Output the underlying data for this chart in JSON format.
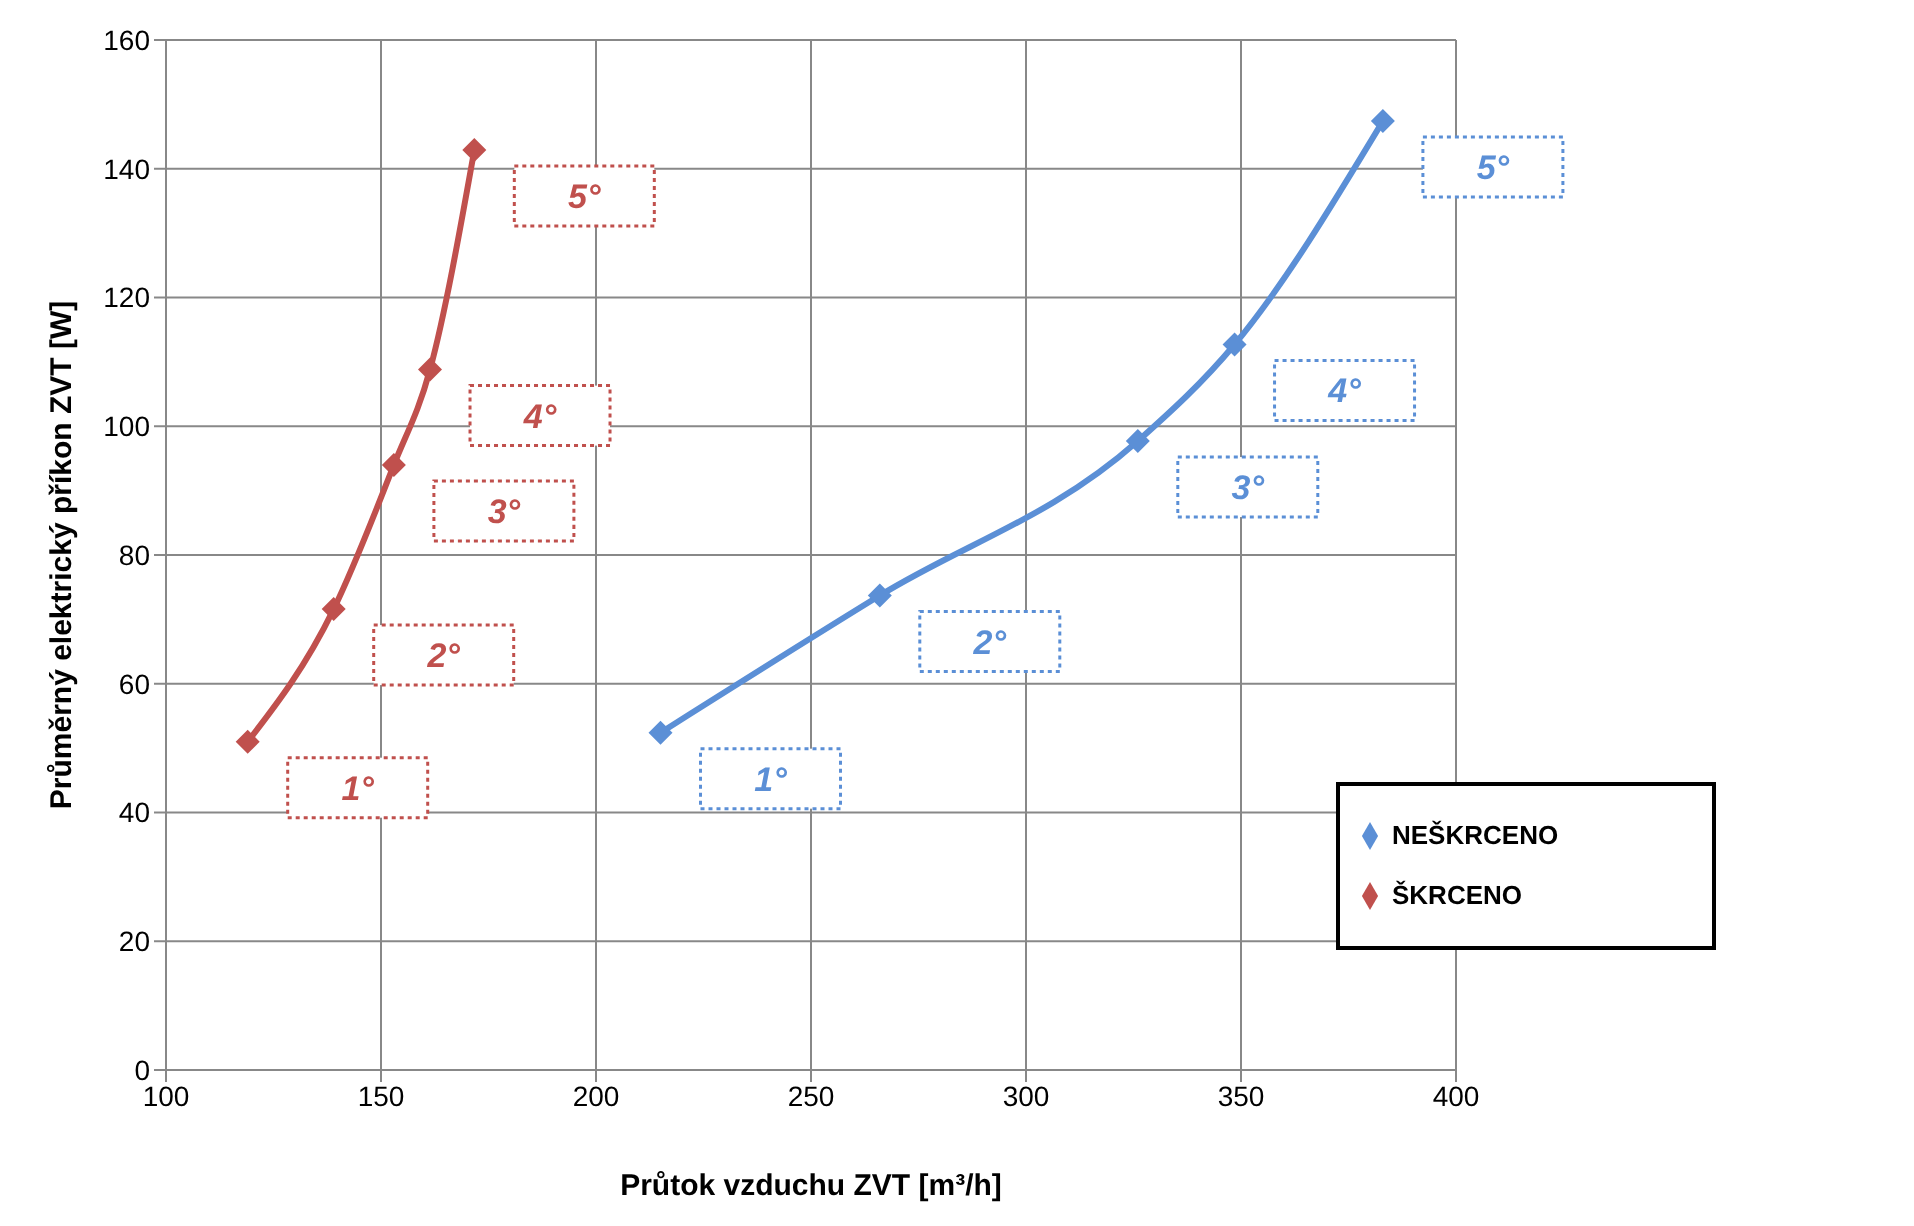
{
  "chart_data": {
    "type": "line",
    "xlabel": "Průtok vzduchu ZVT [m³/h]",
    "ylabel": "Průměrný elektrický příkon ZVT  [W]",
    "xlim": [
      100,
      400
    ],
    "xticks": [
      100,
      150,
      200,
      250,
      300,
      350,
      400
    ],
    "ylim": [
      0,
      160
    ],
    "yticks": [
      0,
      20,
      40,
      60,
      80,
      100,
      120,
      140,
      160
    ],
    "grid": true,
    "legend": "bottom right",
    "marker": "diamond",
    "line_style": "solid",
    "series": [
      {
        "name": "NEŠKRCENO",
        "color": "#5b8fd6",
        "x": [
          215,
          266,
          326,
          348.5,
          383
        ],
        "values": [
          52.4,
          73.7,
          97.7,
          112.7,
          147.4
        ]
      },
      {
        "name": "ŠKRCENO",
        "color": "#c0504d",
        "x": [
          119,
          139,
          153,
          161.4,
          171.7
        ],
        "values": [
          51,
          71.6,
          94,
          108.8,
          142.9
        ]
      }
    ],
    "annotations": [
      {
        "text": "1°",
        "x": 215,
        "y": 52.4
      },
      {
        "text": "2°",
        "x": 266,
        "y": 73.7
      },
      {
        "text": "3°",
        "x": 326,
        "y": 97.7
      },
      {
        "text": "4°",
        "x": 348.5,
        "y": 112.7
      },
      {
        "text": "5°",
        "x": 383,
        "y": 147.4
      },
      {
        "text": "1°",
        "x": 119,
        "y": 51
      },
      {
        "text": "2°",
        "x": 139,
        "y": 71.6
      },
      {
        "text": "3°",
        "x": 153,
        "y": 94
      },
      {
        "text": "4°",
        "x": 161.4,
        "y": 108.8
      },
      {
        "text": "5°",
        "x": 171.7,
        "y": 142.9
      }
    ]
  }
}
